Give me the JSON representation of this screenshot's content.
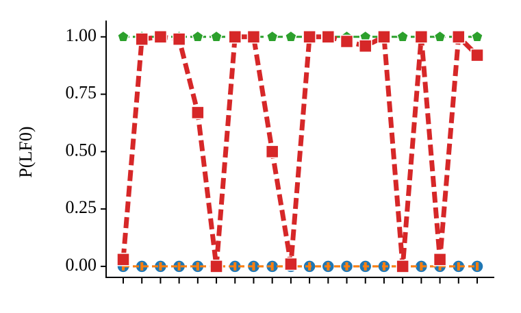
{
  "chart_data": {
    "type": "line",
    "y_label": "P(LF0)",
    "categories": [
      null,
      null,
      null,
      null,
      null,
      null,
      null,
      null,
      null,
      null,
      null,
      null,
      null,
      null,
      null,
      null,
      null,
      null,
      null,
      null
    ],
    "ylim": [
      -0.048,
      1.071
    ],
    "yticks": [
      {
        "value": 0,
        "label": "0.00"
      },
      {
        "value": 0.25,
        "label": "0.25"
      },
      {
        "value": 0.5,
        "label": "0.50"
      },
      {
        "value": 0.75,
        "label": "0.75"
      },
      {
        "value": 1,
        "label": "1.00"
      }
    ],
    "series": [
      {
        "color": "#1f77b4",
        "marker": "circle",
        "values": [
          0,
          0,
          0,
          0,
          0,
          0,
          0,
          0,
          0,
          0,
          0,
          0,
          0,
          0,
          0,
          0,
          0,
          0,
          0,
          0
        ]
      },
      {
        "color": "#ff7f0e",
        "marker": "tick",
        "values": [
          0,
          0,
          0,
          0,
          0,
          0,
          0,
          0,
          0,
          0,
          0,
          0,
          0,
          0,
          0,
          0,
          0,
          0,
          0,
          0
        ]
      },
      {
        "color": "#2ca02c",
        "marker": "pentagon",
        "values": [
          1,
          1,
          1,
          1,
          1,
          1,
          1,
          1,
          1,
          1,
          1,
          1,
          1,
          1,
          1,
          1,
          1,
          1,
          1,
          1
        ]
      },
      {
        "color": "#d62728",
        "marker": "square",
        "values": [
          0.03,
          0.99,
          1,
          0.99,
          0.67,
          0,
          1,
          1,
          0.5,
          0.01,
          1,
          1,
          0.98,
          0.96,
          1,
          0,
          1,
          0.03,
          1,
          0.92
        ]
      }
    ]
  }
}
